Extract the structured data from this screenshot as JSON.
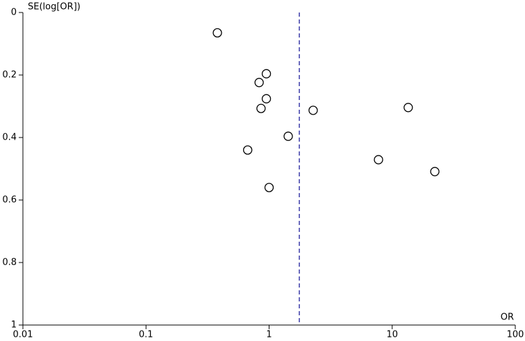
{
  "chart_data": {
    "type": "scatter",
    "x_label": "OR",
    "y_label": "SE(log[OR])",
    "x": [
      0.38,
      0.95,
      0.83,
      0.95,
      0.86,
      2.28,
      13.5,
      1.43,
      0.67,
      7.74,
      22.2,
      1.0
    ],
    "values": [
      0.065,
      0.196,
      0.224,
      0.276,
      0.307,
      0.313,
      0.304,
      0.396,
      0.44,
      0.471,
      0.509,
      0.56
    ],
    "xscale": "log",
    "xlim": [
      0.01,
      100
    ],
    "xticks": [
      0.01,
      0.1,
      1,
      10,
      100
    ],
    "ylim": [
      0,
      1
    ],
    "yticks": [
      0,
      0.2,
      0.4,
      0.6,
      0.8,
      1
    ],
    "y_inverted": true,
    "marker_color": "#000000",
    "reference_line": {
      "x": 1.76,
      "color": "#3b3ba8",
      "dashed": true
    }
  }
}
